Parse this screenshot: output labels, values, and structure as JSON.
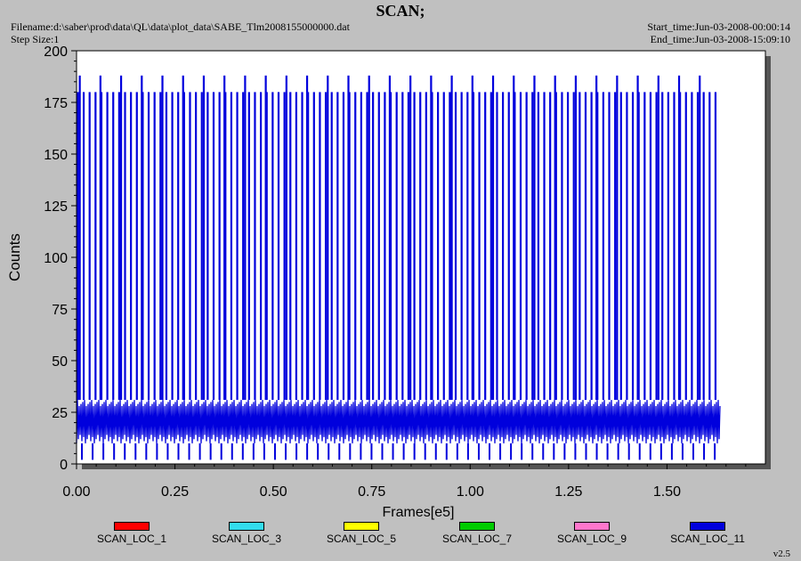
{
  "header": {
    "title": "SCAN;",
    "filename": "Filename:d:\\saber\\prod\\data\\QL\\data\\plot_data\\SABE_Tlm2008155000000.dat",
    "step_size": "Step Size:1",
    "start_time": "Start_time:Jun-03-2008-00:00:14",
    "end_time": "End_time:Jun-03-2008-15:09:10"
  },
  "footer": {
    "version": "v2.5"
  },
  "colors": {
    "background": "#c0c0c0",
    "plot_area": "#ffffff",
    "SCAN_LOC_1": "#ff0000",
    "SCAN_LOC_3": "#33ddee",
    "SCAN_LOC_5": "#ffff00",
    "SCAN_LOC_7": "#00cc00",
    "SCAN_LOC_9": "#ff77cc",
    "SCAN_LOC_11": "#0000dd"
  },
  "chart_data": {
    "type": "line",
    "title": "SCAN;",
    "xlabel": "Frames[e5]",
    "ylabel": "Counts",
    "xlim": [
      0,
      1.75
    ],
    "ylim": [
      0,
      200
    ],
    "x_ticks": [
      0,
      0.25,
      0.5,
      0.75,
      1.0,
      1.25,
      1.5
    ],
    "x_tick_labels": [
      "0.00",
      "0.25",
      "0.50",
      "0.75",
      "1.00",
      "1.25",
      "1.50"
    ],
    "y_ticks": [
      0,
      25,
      50,
      75,
      100,
      125,
      150,
      175,
      200
    ],
    "y_tick_labels": [
      "0",
      "25",
      "50",
      "75",
      "100",
      "125",
      "150",
      "175",
      "200"
    ],
    "grid": false,
    "legend_position": "bottom",
    "series": [
      {
        "name": "SCAN_LOC_1",
        "color": "#ff0000",
        "description_range": [
          0,
          0
        ]
      },
      {
        "name": "SCAN_LOC_3",
        "color": "#33ddee",
        "description_range": [
          0,
          0
        ]
      },
      {
        "name": "SCAN_LOC_5",
        "color": "#ffff00",
        "description_range": [
          0,
          0
        ]
      },
      {
        "name": "SCAN_LOC_7",
        "color": "#00cc00",
        "description_range": [
          0,
          0
        ]
      },
      {
        "name": "SCAN_LOC_9",
        "color": "#ff77cc",
        "description_range": [
          0,
          0
        ]
      },
      {
        "name": "SCAN_LOC_11",
        "color": "#0000dd",
        "x_start": 0.0,
        "x_end": 1.635,
        "baseline_band": [
          10,
          31
        ],
        "min_value": 2,
        "spike_period": 0.015,
        "spike_value": 180,
        "long_spike_period": 0.0525,
        "long_spike_value": 188,
        "long_spike_offset": 0.008
      }
    ]
  }
}
